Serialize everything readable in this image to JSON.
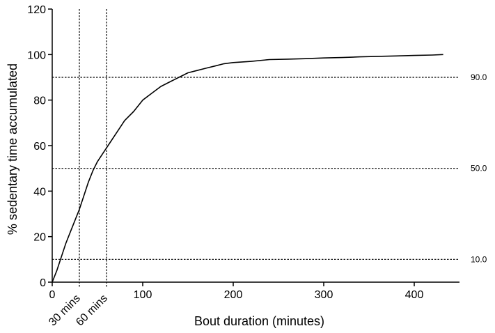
{
  "chart_data": {
    "type": "line",
    "xlabel": "Bout duration (minutes)",
    "ylabel": "% sedentary time accumulated",
    "xlim": [
      0,
      450
    ],
    "ylim": [
      0,
      120
    ],
    "xticks": [
      0,
      100,
      200,
      300,
      400
    ],
    "yticks": [
      0,
      20,
      40,
      60,
      80,
      100,
      120
    ],
    "grid": false,
    "series": [
      {
        "x": [
          0,
          5,
          10,
          15,
          20,
          25,
          30,
          35,
          40,
          45,
          50,
          55,
          60,
          65,
          70,
          75,
          80,
          90,
          100,
          110,
          120,
          130,
          140,
          150,
          160,
          170,
          180,
          190,
          200,
          220,
          240,
          260,
          280,
          300,
          320,
          340,
          360,
          380,
          400,
          420,
          432
        ],
        "y": [
          0,
          5,
          11,
          17,
          22,
          27,
          32,
          38,
          44,
          49,
          53,
          56,
          59,
          62,
          65,
          68,
          71,
          75,
          80,
          83,
          86,
          88,
          90,
          92,
          93,
          94,
          95,
          96,
          96.5,
          97,
          97.8,
          98,
          98.2,
          98.5,
          98.7,
          99,
          99.2,
          99.4,
          99.6,
          99.8,
          100
        ]
      }
    ],
    "reference_lines_horizontal": [
      {
        "y": 90,
        "label": "90.0"
      },
      {
        "y": 50,
        "label": "50.0"
      },
      {
        "y": 10,
        "label": "10.0"
      }
    ],
    "reference_lines_vertical": [
      {
        "x": 30,
        "label": "30 mins"
      },
      {
        "x": 60,
        "label": "60 mins"
      }
    ]
  }
}
